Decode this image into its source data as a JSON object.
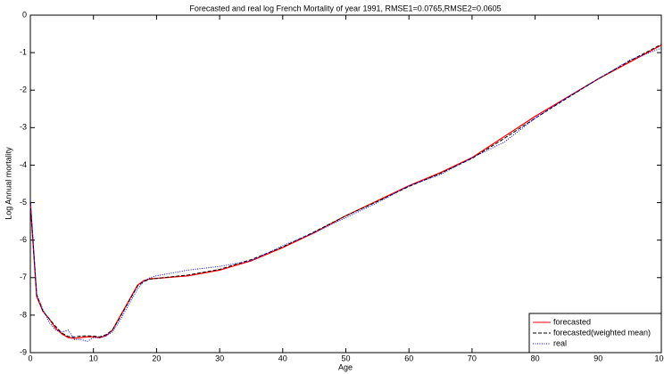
{
  "chart_data": {
    "type": "line",
    "title": "Forecasted and real log French Mortality of year 1991, RMSE1=0.0765,RMSE2=0.0605",
    "x_label": "Age",
    "y_label": "Log Annual mortality",
    "x": [
      0,
      1,
      2,
      3,
      4,
      5,
      6,
      7,
      8,
      9,
      10,
      11,
      12,
      13,
      14,
      15,
      16,
      17,
      18,
      19,
      20,
      25,
      30,
      35,
      40,
      45,
      50,
      55,
      60,
      65,
      70,
      75,
      80,
      85,
      90,
      95,
      100
    ],
    "series": [
      {
        "name": "forecasted",
        "color": "#ff0000",
        "style": "solid",
        "values": [
          -5.0,
          -7.5,
          -7.9,
          -8.1,
          -8.35,
          -8.5,
          -8.6,
          -8.62,
          -8.6,
          -8.58,
          -8.58,
          -8.6,
          -8.55,
          -8.4,
          -8.1,
          -7.8,
          -7.5,
          -7.2,
          -7.08,
          -7.03,
          -7.02,
          -6.95,
          -6.8,
          -6.55,
          -6.2,
          -5.8,
          -5.35,
          -4.95,
          -4.55,
          -4.2,
          -3.8,
          -3.25,
          -2.7,
          -2.2,
          -1.7,
          -1.25,
          -0.8
        ]
      },
      {
        "name": "forecasted(weighted mean)",
        "color": "#000000",
        "style": "dashed",
        "values": [
          -5.0,
          -7.45,
          -7.9,
          -8.1,
          -8.3,
          -8.48,
          -8.57,
          -8.58,
          -8.56,
          -8.55,
          -8.56,
          -8.58,
          -8.52,
          -8.4,
          -8.12,
          -7.82,
          -7.52,
          -7.22,
          -7.1,
          -7.04,
          -7.02,
          -6.93,
          -6.78,
          -6.52,
          -6.18,
          -5.78,
          -5.35,
          -4.97,
          -4.57,
          -4.22,
          -3.82,
          -3.3,
          -2.75,
          -2.22,
          -1.7,
          -1.22,
          -0.78
        ]
      },
      {
        "name": "real",
        "color": "#0000ff",
        "style": "dotted",
        "values": [
          -4.9,
          -7.45,
          -7.85,
          -8.2,
          -8.4,
          -8.45,
          -8.4,
          -8.65,
          -8.65,
          -8.7,
          -8.6,
          -8.6,
          -8.55,
          -8.45,
          -8.2,
          -7.9,
          -7.6,
          -7.3,
          -7.1,
          -7.0,
          -6.95,
          -6.8,
          -6.7,
          -6.55,
          -6.15,
          -5.8,
          -5.4,
          -5.0,
          -4.55,
          -4.25,
          -3.8,
          -3.4,
          -2.75,
          -2.2,
          -1.7,
          -1.2,
          -0.88
        ]
      }
    ],
    "xlim": [
      0,
      100
    ],
    "ylim": [
      -9,
      0
    ],
    "xticks": [
      0,
      10,
      20,
      30,
      40,
      50,
      60,
      70,
      80,
      90,
      100
    ],
    "yticks": [
      0,
      -1,
      -2,
      -3,
      -4,
      -5,
      -6,
      -7,
      -8,
      -9
    ],
    "grid": false,
    "legend": "lower right"
  }
}
